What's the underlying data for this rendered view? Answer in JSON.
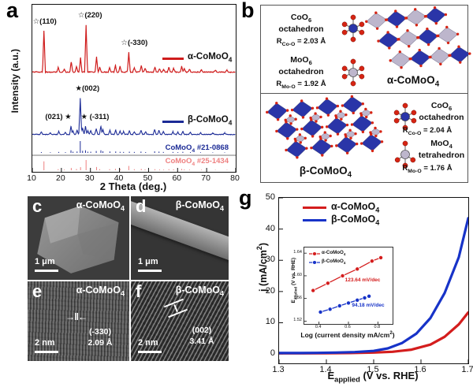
{
  "figure": {
    "panels": {
      "a": {
        "letter": "a"
      },
      "b": {
        "letter": "b",
        "alpha": {
          "co_line1": "CoO_6_",
          "co_line2": "octahedron",
          "co_r": "R_Co-O_ = 2.03 Å",
          "mo_line1": "MoO_6_",
          "mo_line2": "octahedron",
          "mo_r": "R_Mo-O_ = 1.92 Å",
          "phase": "α-CoMoO_4_"
        },
        "beta": {
          "co_line1": "CoO_6_",
          "co_line2": "octahedron",
          "co_r": "R_Co-O_ = 2.04 Å",
          "mo_line1": "MoO_4_",
          "mo_line2": "tetrahedron",
          "mo_r": "R_Mo-O_ = 1.76 Å",
          "phase": "β-CoMoO_4_"
        }
      },
      "c": {
        "letter": "c",
        "label": "α-CoMoO_4_",
        "scalebar": "1 μm"
      },
      "d": {
        "letter": "d",
        "label": "β-CoMoO_4_",
        "scalebar": "1 μm"
      },
      "e": {
        "letter": "e",
        "label": "α-CoMoO_4_",
        "scalebar": "2 nm",
        "plane": "(-330)",
        "spacing": "2.09 Å"
      },
      "f": {
        "letter": "f",
        "label": "β-CoMoO_4_",
        "scalebar": "2 nm",
        "plane": "(002)",
        "spacing": "3.41 Å"
      },
      "g": {
        "letter": "g"
      }
    },
    "colors": {
      "alpha_red": "#cf1c1c",
      "beta_navy": "#1c2b96",
      "beta_bright": "#1733c8",
      "ref_pink": "#ee8080"
    }
  },
  "chart_data": [
    {
      "id": "xrd",
      "type": "line",
      "xlabel": "2 Theta (deg.)",
      "ylabel": "Intensity (a.u.)",
      "xlim": [
        10,
        80
      ],
      "x_ticks": [
        10,
        20,
        30,
        40,
        50,
        60,
        70,
        80
      ],
      "grid": false,
      "legend_position": "right-inside",
      "series": [
        {
          "name": "α-CoMoO_4_",
          "color": "#cf1c1c",
          "style": "curve",
          "peaks": [
            [
              14,
              0.87
            ],
            [
              18.9,
              0.1
            ],
            [
              21.0,
              0.06
            ],
            [
              23.4,
              0.22
            ],
            [
              25.2,
              0.12
            ],
            [
              26.6,
              0.3
            ],
            [
              28.5,
              1.0
            ],
            [
              32.1,
              0.32
            ],
            [
              33.2,
              0.1
            ],
            [
              36.6,
              0.1
            ],
            [
              38.6,
              0.14
            ],
            [
              40.2,
              0.12
            ],
            [
              43.2,
              0.42
            ],
            [
              45.1,
              0.1
            ],
            [
              47.5,
              0.13
            ],
            [
              48.8,
              0.08
            ],
            [
              52.2,
              0.1
            ],
            [
              53.8,
              0.07
            ],
            [
              55.2,
              0.06
            ],
            [
              57.0,
              0.1
            ],
            [
              58.6,
              0.09
            ],
            [
              61.4,
              0.13
            ],
            [
              62.3,
              0.08
            ],
            [
              64.1,
              0.06
            ],
            [
              68.2,
              0.05
            ],
            [
              73.0,
              0.04
            ],
            [
              77.0,
              0.04
            ]
          ],
          "annotations": [
            {
              "text": "☆(110)",
              "x": 14,
              "dx": 2
            },
            {
              "text": "☆(220)",
              "x": 28.5,
              "dx": 6
            },
            {
              "text": "☆(-330)",
              "x": 43.2,
              "dx": 8
            }
          ]
        },
        {
          "name": "β-CoMoO_4_",
          "color": "#1c2b96",
          "style": "curve",
          "peaks": [
            [
              13.1,
              0.07
            ],
            [
              16.2,
              0.05
            ],
            [
              19.1,
              0.08
            ],
            [
              21.4,
              0.06
            ],
            [
              23.3,
              0.22
            ],
            [
              24.0,
              0.1
            ],
            [
              25.4,
              0.12
            ],
            [
              26.5,
              1.0
            ],
            [
              27.3,
              0.18
            ],
            [
              28.3,
              0.22
            ],
            [
              29.1,
              0.1
            ],
            [
              30.1,
              0.1
            ],
            [
              32.0,
              0.16
            ],
            [
              33.6,
              0.22
            ],
            [
              34.3,
              0.14
            ],
            [
              36.7,
              0.12
            ],
            [
              38.7,
              0.12
            ],
            [
              40.2,
              0.09
            ],
            [
              41.4,
              0.08
            ],
            [
              43.4,
              0.1
            ],
            [
              45.1,
              0.08
            ],
            [
              47.4,
              0.11
            ],
            [
              49.0,
              0.07
            ],
            [
              52.1,
              0.13
            ],
            [
              53.6,
              0.11
            ],
            [
              55.1,
              0.08
            ],
            [
              58.4,
              0.08
            ],
            [
              60.1,
              0.06
            ],
            [
              61.8,
              0.09
            ],
            [
              64.4,
              0.06
            ],
            [
              67.9,
              0.05
            ],
            [
              72.1,
              0.04
            ],
            [
              76.2,
              0.04
            ]
          ],
          "annotations": [
            {
              "text": "(021) ★",
              "x": 23.3,
              "dx": -15
            },
            {
              "text": "★(002)",
              "x": 26.5,
              "dx": 10
            },
            {
              "text": "★ (-311)",
              "x": 28.3,
              "dx": 13
            }
          ]
        },
        {
          "name": "CoMoO_4_ #21-0868",
          "color": "#1c2b96",
          "style": "sticks",
          "peaks_from": 1
        },
        {
          "name": "CoMoO_4_ #25-1434",
          "color": "#ee8080",
          "style": "sticks",
          "peaks_from": 0
        }
      ]
    },
    {
      "id": "lsv",
      "type": "line",
      "xlabel": "E_applied_ (V vs. RHE)",
      "ylabel": "j (mA/cm^2^)",
      "xlim": [
        1.3,
        1.7
      ],
      "ylim": [
        -3,
        50
      ],
      "x_ticks": [
        "1.3",
        "1.4",
        "1.5",
        "1.6",
        "1.7"
      ],
      "y_ticks": [
        0,
        10,
        20,
        30,
        40,
        50
      ],
      "grid": false,
      "legend_position": "top-left",
      "series": [
        {
          "name": "α-CoMoO_4_",
          "color": "#d41d1d",
          "x": [
            1.3,
            1.35,
            1.4,
            1.45,
            1.5,
            1.54,
            1.58,
            1.62,
            1.65,
            1.68,
            1.7
          ],
          "y": [
            0.2,
            0.2,
            0.25,
            0.3,
            0.45,
            0.7,
            1.4,
            3.0,
            5.5,
            9.5,
            13.3
          ]
        },
        {
          "name": "β-CoMoO_4_",
          "color": "#1733c8",
          "x": [
            1.3,
            1.34,
            1.38,
            1.42,
            1.46,
            1.5,
            1.53,
            1.56,
            1.59,
            1.62,
            1.65,
            1.68,
            1.7
          ],
          "y": [
            0.3,
            0.3,
            0.35,
            0.45,
            0.6,
            1.0,
            1.8,
            3.5,
            6.5,
            11.5,
            19.5,
            31.0,
            43.5
          ]
        }
      ]
    },
    {
      "id": "tafel-inset",
      "type": "scatter",
      "xlabel": "Log (current density mA/cm^2^)",
      "ylabel": "E_applied_ (V vs. RHE)",
      "xlim": [
        0.3,
        0.9
      ],
      "ylim": [
        1.515,
        1.65
      ],
      "x_ticks": [
        "0.4",
        "0.6",
        "0.8"
      ],
      "y_ticks": [
        "1.52",
        "1.56",
        "1.60",
        "1.64"
      ],
      "grid": false,
      "legend_position": "top-left",
      "series": [
        {
          "name": "α-CoMoO_4_",
          "color": "#d41d1d",
          "slope_label": "123.64 mV/dec",
          "x": [
            0.36,
            0.46,
            0.56,
            0.66,
            0.76,
            0.82
          ],
          "y": [
            1.574,
            1.587,
            1.6,
            1.612,
            1.626,
            1.632
          ]
        },
        {
          "name": "β-CoMoO_4_",
          "color": "#1733c8",
          "slope_label": "94.18 mV/dec",
          "x": [
            0.41,
            0.475,
            0.54,
            0.6,
            0.66,
            0.71,
            0.74
          ],
          "y": [
            1.536,
            1.541,
            1.547,
            1.552,
            1.557,
            1.561,
            1.564
          ]
        }
      ]
    }
  ]
}
